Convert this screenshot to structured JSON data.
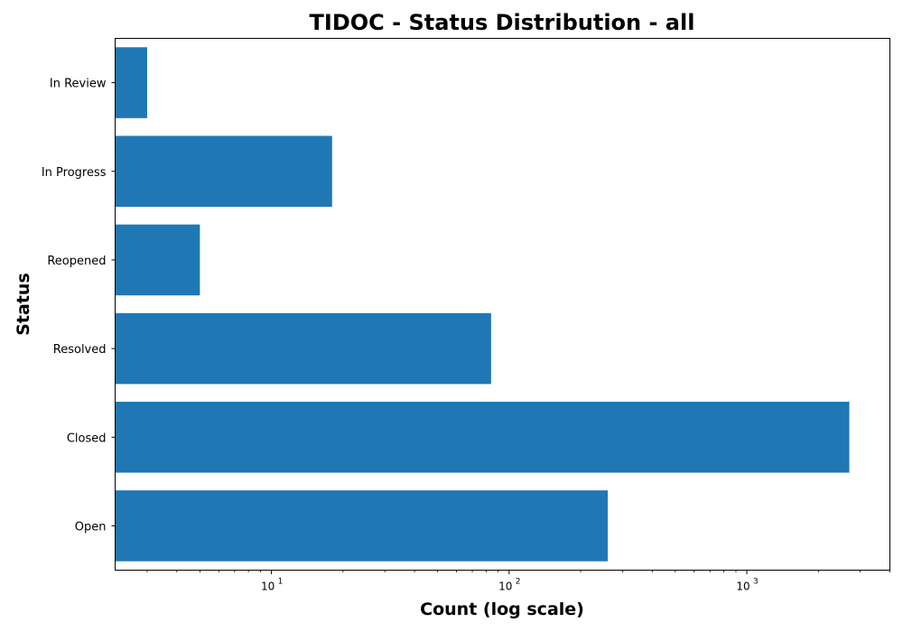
{
  "chart_data": {
    "type": "bar",
    "orientation": "horizontal",
    "title": "TIDOC - Status Distribution - all",
    "xlabel": "Count (log scale)",
    "ylabel": "Status",
    "x_scale": "log",
    "xlim": [
      2.2,
      4000
    ],
    "x_ticks": [
      {
        "value": 10,
        "base": "10",
        "exp": "1"
      },
      {
        "value": 100,
        "base": "10",
        "exp": "2"
      },
      {
        "value": 1000,
        "base": "10",
        "exp": "3"
      }
    ],
    "categories": [
      "Open",
      "Closed",
      "Resolved",
      "Reopened",
      "In Progress",
      "In Review"
    ],
    "values": [
      260,
      2700,
      84,
      5,
      18,
      3
    ],
    "color": "#1f77b4",
    "grid": false,
    "legend": "none"
  }
}
